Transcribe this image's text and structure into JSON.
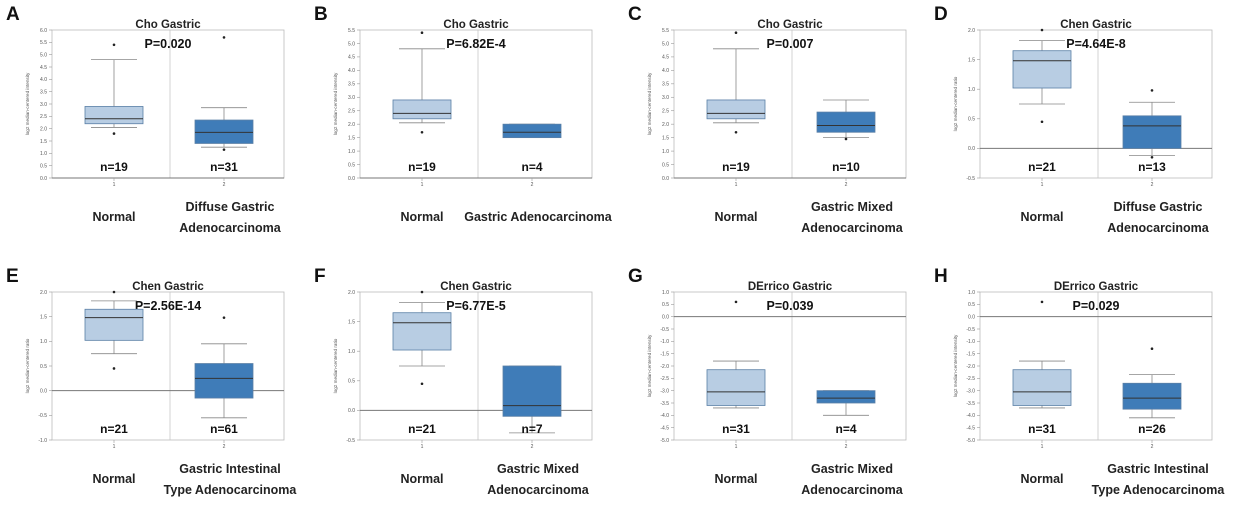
{
  "chart_data": [
    {
      "type": "box",
      "panel_label": "A",
      "title": "Cho Gastric",
      "pvalue": "P=0.020",
      "ylabel": "log2 median-centered intensity",
      "ylim": [
        0,
        6.0
      ],
      "yticks": [
        "6.0",
        "5.5",
        "5.0",
        "4.5",
        "4.0",
        "3.5",
        "3.0",
        "2.5",
        "2.0",
        "1.5",
        "1.0",
        "0.5",
        "0.0"
      ],
      "ytick_values": [
        6.0,
        5.5,
        5.0,
        4.5,
        4.0,
        3.5,
        3.0,
        2.5,
        2.0,
        1.5,
        1.0,
        0.5,
        0.0
      ],
      "xticks": [
        "1",
        "2"
      ],
      "groups": [
        {
          "label": [
            "Normal"
          ],
          "n": "n=19",
          "min": 2.05,
          "q1": 2.2,
          "median": 2.4,
          "q3": 2.9,
          "max": 4.8,
          "outliers": [
            5.4,
            1.8
          ],
          "color": "#b8cde3"
        },
        {
          "label": [
            "Diffuse Gastric",
            "Adenocarcinoma"
          ],
          "n": "n=31",
          "min": 1.25,
          "q1": 1.4,
          "median": 1.85,
          "q3": 2.35,
          "max": 2.85,
          "outliers": [
            5.7,
            1.15
          ],
          "color": "#3f7cb8"
        }
      ]
    },
    {
      "type": "box",
      "panel_label": "B",
      "title": "Cho Gastric",
      "pvalue": "P=6.82E-4",
      "ylabel": "log2 median-centered intensity",
      "ylim": [
        0,
        5.5
      ],
      "yticks": [
        "5.5",
        "5.0",
        "4.5",
        "4.0",
        "3.5",
        "3.0",
        "2.5",
        "2.0",
        "1.5",
        "1.0",
        "0.5",
        "0.0"
      ],
      "ytick_values": [
        5.5,
        5.0,
        4.5,
        4.0,
        3.5,
        3.0,
        2.5,
        2.0,
        1.5,
        1.0,
        0.5,
        0.0
      ],
      "xticks": [
        "1",
        "2"
      ],
      "groups": [
        {
          "label": [
            "Normal"
          ],
          "n": "n=19",
          "min": 2.05,
          "q1": 2.2,
          "median": 2.4,
          "q3": 2.9,
          "max": 4.8,
          "outliers": [
            5.4,
            1.7
          ],
          "color": "#b8cde3"
        },
        {
          "label": [
            "Gastric Adenocarcinoma"
          ],
          "n": "n=4",
          "min": 1.5,
          "q1": 1.5,
          "median": 1.7,
          "q3": 2.0,
          "max": 2.0,
          "outliers": [],
          "color": "#3f7cb8"
        }
      ]
    },
    {
      "type": "box",
      "panel_label": "C",
      "title": "Cho Gastric",
      "pvalue": "P=0.007",
      "ylabel": "log2 median-centered intensity",
      "ylim": [
        0,
        5.5
      ],
      "yticks": [
        "5.5",
        "5.0",
        "4.5",
        "4.0",
        "3.5",
        "3.0",
        "2.5",
        "2.0",
        "1.5",
        "1.0",
        "0.5",
        "0.0"
      ],
      "ytick_values": [
        5.5,
        5.0,
        4.5,
        4.0,
        3.5,
        3.0,
        2.5,
        2.0,
        1.5,
        1.0,
        0.5,
        0.0
      ],
      "xticks": [
        "1",
        "2"
      ],
      "groups": [
        {
          "label": [
            "Normal"
          ],
          "n": "n=19",
          "min": 2.05,
          "q1": 2.2,
          "median": 2.4,
          "q3": 2.9,
          "max": 4.8,
          "outliers": [
            5.4,
            1.7
          ],
          "color": "#b8cde3"
        },
        {
          "label": [
            "Gastric Mixed",
            "Adenocarcinoma"
          ],
          "n": "n=10",
          "min": 1.5,
          "q1": 1.7,
          "median": 1.95,
          "q3": 2.45,
          "max": 2.9,
          "outliers": [
            1.45
          ],
          "color": "#3f7cb8"
        }
      ]
    },
    {
      "type": "box",
      "panel_label": "D",
      "title": "Chen Gastric",
      "pvalue": "P=4.64E-8",
      "ylabel": "log2 median-centered ratio",
      "ylim": [
        -0.5,
        2.0
      ],
      "yticks": [
        "2.0",
        "1.5",
        "1.0",
        "0.5",
        "0.0",
        "-0.5"
      ],
      "ytick_values": [
        2.0,
        1.5,
        1.0,
        0.5,
        0.0,
        -0.5
      ],
      "xticks": [
        "1",
        "2"
      ],
      "groups": [
        {
          "label": [
            "Normal"
          ],
          "n": "n=21",
          "min": 0.75,
          "q1": 1.02,
          "median": 1.48,
          "q3": 1.65,
          "max": 1.82,
          "outliers": [
            2.0,
            0.45
          ],
          "color": "#b8cde3"
        },
        {
          "label": [
            "Diffuse Gastric",
            "Adenocarcinoma"
          ],
          "n": "n=13",
          "min": -0.12,
          "q1": 0.0,
          "median": 0.38,
          "q3": 0.55,
          "max": 0.78,
          "outliers": [
            0.98,
            -0.15
          ],
          "color": "#3f7cb8"
        }
      ]
    },
    {
      "type": "box",
      "panel_label": "E",
      "title": "Chen Gastric",
      "pvalue": "P=2.56E-14",
      "ylabel": "log2 median-centered ratio",
      "ylim": [
        -1.0,
        2.0
      ],
      "yticks": [
        "2.0",
        "1.5",
        "1.0",
        "0.5",
        "0.0",
        "-0.5",
        "-1.0"
      ],
      "ytick_values": [
        2.0,
        1.5,
        1.0,
        0.5,
        0.0,
        -0.5,
        -1.0
      ],
      "xticks": [
        "1",
        "2"
      ],
      "groups": [
        {
          "label": [
            "Normal"
          ],
          "n": "n=21",
          "min": 0.75,
          "q1": 1.02,
          "median": 1.48,
          "q3": 1.65,
          "max": 1.82,
          "outliers": [
            2.0,
            0.45
          ],
          "color": "#b8cde3"
        },
        {
          "label": [
            "Gastric Intestinal",
            "Type Adenocarcinoma"
          ],
          "n": "n=61",
          "min": -0.55,
          "q1": -0.15,
          "median": 0.25,
          "q3": 0.55,
          "max": 0.95,
          "outliers": [
            1.48
          ],
          "color": "#3f7cb8"
        }
      ]
    },
    {
      "type": "box",
      "panel_label": "F",
      "title": "Chen Gastric",
      "pvalue": "P=6.77E-5",
      "ylabel": "log2 median-centered ratio",
      "ylim": [
        -0.5,
        2.0
      ],
      "yticks": [
        "2.0",
        "1.5",
        "1.0",
        "0.5",
        "0.0",
        "-0.5"
      ],
      "ytick_values": [
        2.0,
        1.5,
        1.0,
        0.5,
        0.0,
        -0.5
      ],
      "xticks": [
        "1",
        "2"
      ],
      "groups": [
        {
          "label": [
            "Normal"
          ],
          "n": "n=21",
          "min": 0.75,
          "q1": 1.02,
          "median": 1.48,
          "q3": 1.65,
          "max": 1.82,
          "outliers": [
            2.0,
            0.45
          ],
          "color": "#b8cde3"
        },
        {
          "label": [
            "Gastric Mixed",
            "Adenocarcinoma"
          ],
          "n": "n=7",
          "min": -0.38,
          "q1": -0.1,
          "median": 0.08,
          "q3": 0.75,
          "max": 0.75,
          "outliers": [],
          "color": "#3f7cb8"
        }
      ]
    },
    {
      "type": "box",
      "panel_label": "G",
      "title": "DErrico Gastric",
      "pvalue": "P=0.039",
      "ylabel": "log2 median-centered intensity",
      "ylim": [
        -5.0,
        1.0
      ],
      "yticks": [
        "1.0",
        "0.5",
        "0.0",
        "-0.5",
        "-1.0",
        "-1.5",
        "-2.0",
        "-2.5",
        "-3.0",
        "-3.5",
        "-4.0",
        "-4.5",
        "-5.0"
      ],
      "ytick_values": [
        1.0,
        0.5,
        0.0,
        -0.5,
        -1.0,
        -1.5,
        -2.0,
        -2.5,
        -3.0,
        -3.5,
        -4.0,
        -4.5,
        -5.0
      ],
      "xticks": [
        "1",
        "2"
      ],
      "groups": [
        {
          "label": [
            "Normal"
          ],
          "n": "n=31",
          "min": -3.7,
          "q1": -3.6,
          "median": -3.05,
          "q3": -2.15,
          "max": -1.8,
          "outliers": [
            0.6
          ],
          "color": "#b8cde3"
        },
        {
          "label": [
            "Gastric Mixed",
            "Adenocarcinoma"
          ],
          "n": "n=4",
          "min": -4.0,
          "q1": -3.5,
          "median": -3.3,
          "q3": -3.0,
          "max": -3.0,
          "outliers": [],
          "color": "#3f7cb8"
        }
      ]
    },
    {
      "type": "box",
      "panel_label": "H",
      "title": "DErrico Gastric",
      "pvalue": "P=0.029",
      "ylabel": "log2 median-centered intensity",
      "ylim": [
        -5.0,
        1.0
      ],
      "yticks": [
        "1.0",
        "0.5",
        "0.0",
        "-0.5",
        "-1.0",
        "-1.5",
        "-2.0",
        "-2.5",
        "-3.0",
        "-3.5",
        "-4.0",
        "-4.5",
        "-5.0"
      ],
      "ytick_values": [
        1.0,
        0.5,
        0.0,
        -0.5,
        -1.0,
        -1.5,
        -2.0,
        -2.5,
        -3.0,
        -3.5,
        -4.0,
        -4.5,
        -5.0
      ],
      "xticks": [
        "1",
        "2"
      ],
      "groups": [
        {
          "label": [
            "Normal"
          ],
          "n": "n=31",
          "min": -3.7,
          "q1": -3.6,
          "median": -3.05,
          "q3": -2.15,
          "max": -1.8,
          "outliers": [
            0.6
          ],
          "color": "#b8cde3"
        },
        {
          "label": [
            "Gastric Intestinal",
            "Type Adenocarcinoma"
          ],
          "n": "n=26",
          "min": -4.1,
          "q1": -3.75,
          "median": -3.3,
          "q3": -2.7,
          "max": -2.35,
          "outliers": [
            -1.3
          ],
          "color": "#3f7cb8"
        }
      ]
    }
  ]
}
